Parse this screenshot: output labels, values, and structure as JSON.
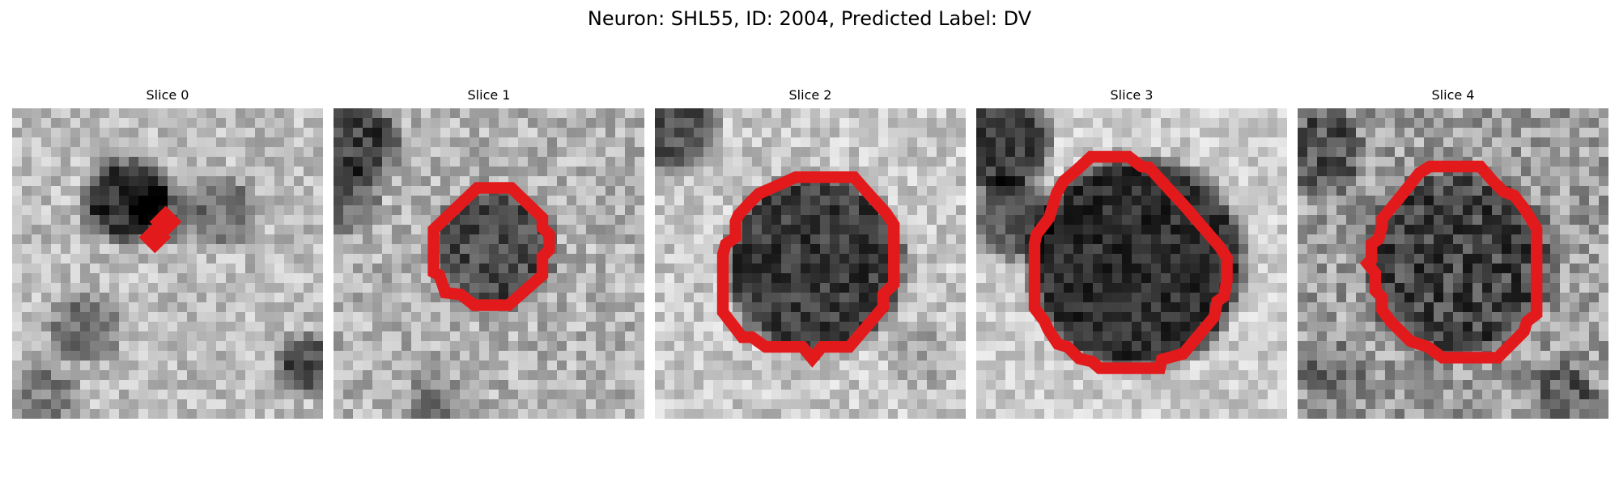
{
  "figure": {
    "title": "Neuron: SHL55, ID: 2004, Predicted Label: DV",
    "contour_color": "#e31a1c",
    "panels": [
      {
        "title": "Slice 0"
      },
      {
        "title": "Slice 1"
      },
      {
        "title": "Slice 2"
      },
      {
        "title": "Slice 3"
      },
      {
        "title": "Slice 4"
      }
    ]
  }
}
